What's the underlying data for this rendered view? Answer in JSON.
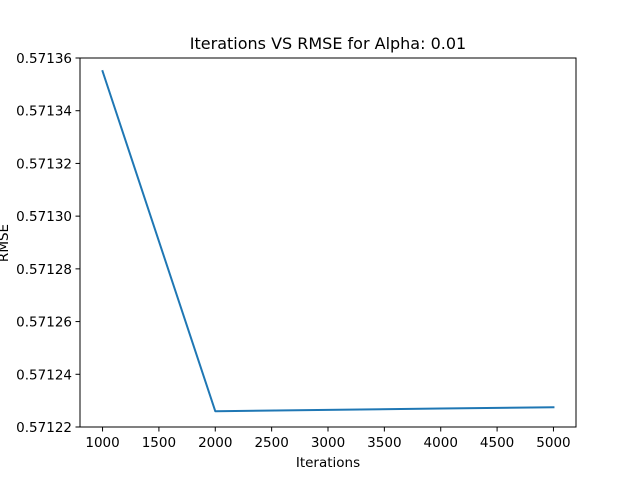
{
  "chart_data": {
    "type": "line",
    "title": "Iterations VS RMSE for Alpha: 0.01",
    "xlabel": "Iterations",
    "ylabel": "RMSE",
    "xlim": [
      800,
      5200
    ],
    "ylim": [
      0.57122,
      0.57136
    ],
    "xticks": [
      1000,
      1500,
      2000,
      2500,
      3000,
      3500,
      4000,
      4500,
      5000
    ],
    "yticks": [
      0.57122,
      0.57124,
      0.57126,
      0.57128,
      0.5713,
      0.57132,
      0.57134,
      0.57136
    ],
    "grid": false,
    "legend": "none",
    "series": [
      {
        "color": "#1f77b4",
        "x": [
          1000,
          2000,
          3000,
          4000,
          5000
        ],
        "y": [
          0.571355,
          0.571226,
          0.5712265,
          0.571227,
          0.5712275
        ]
      }
    ]
  }
}
